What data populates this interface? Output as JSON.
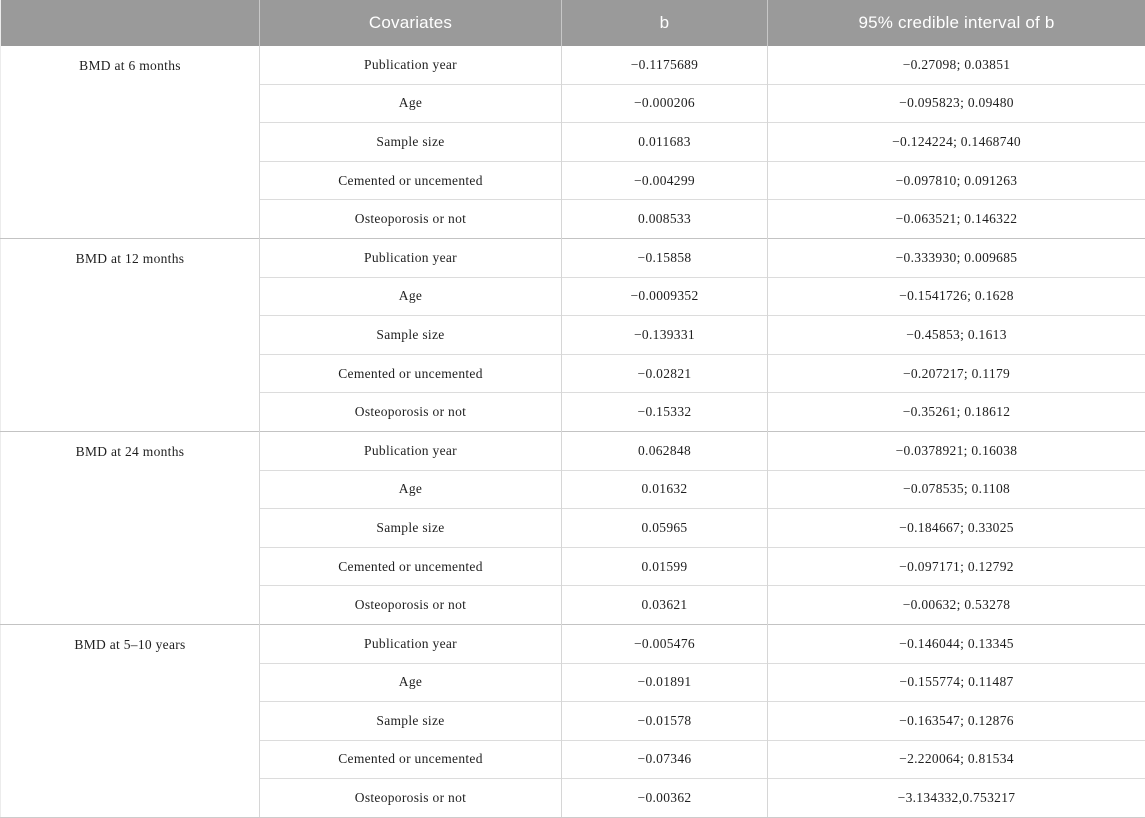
{
  "colors": {
    "header_bg": "#9a9a9a",
    "header_text": "#ffffff",
    "body_text": "#1f1f1f",
    "row_line": "#dcdcdc",
    "group_line": "#c3c3c3"
  },
  "table": {
    "header": {
      "group": "",
      "covariates": "Covariates",
      "b": "b",
      "ci": "95% credible interval of b"
    },
    "groups": [
      {
        "label": "BMD at 6 months",
        "rows": [
          {
            "covariate": "Publication year",
            "b": "−0.1175689",
            "ci": "−0.27098; 0.03851"
          },
          {
            "covariate": "Age",
            "b": "−0.000206",
            "ci": "−0.095823; 0.09480"
          },
          {
            "covariate": "Sample size",
            "b": "0.011683",
            "ci": "−0.124224; 0.1468740"
          },
          {
            "covariate": "Cemented or uncemented",
            "b": "−0.004299",
            "ci": "−0.097810; 0.091263"
          },
          {
            "covariate": "Osteoporosis or not",
            "b": "0.008533",
            "ci": "−0.063521; 0.146322"
          }
        ]
      },
      {
        "label": "BMD at 12 months",
        "rows": [
          {
            "covariate": "Publication year",
            "b": "−0.15858",
            "ci": "−0.333930; 0.009685"
          },
          {
            "covariate": "Age",
            "b": "−0.0009352",
            "ci": "−0.1541726; 0.1628"
          },
          {
            "covariate": "Sample size",
            "b": "−0.139331",
            "ci": "−0.45853; 0.1613"
          },
          {
            "covariate": "Cemented or uncemented",
            "b": "−0.02821",
            "ci": "−0.207217; 0.1179"
          },
          {
            "covariate": "Osteoporosis or not",
            "b": "−0.15332",
            "ci": "−0.35261; 0.18612"
          }
        ]
      },
      {
        "label": "BMD at 24 months",
        "rows": [
          {
            "covariate": "Publication year",
            "b": "0.062848",
            "ci": "−0.0378921; 0.16038"
          },
          {
            "covariate": "Age",
            "b": "0.01632",
            "ci": "−0.078535; 0.1108"
          },
          {
            "covariate": "Sample size",
            "b": "0.05965",
            "ci": "−0.184667; 0.33025"
          },
          {
            "covariate": "Cemented or uncemented",
            "b": "0.01599",
            "ci": "−0.097171; 0.12792"
          },
          {
            "covariate": "Osteoporosis or not",
            "b": "0.03621",
            "ci": "−0.00632; 0.53278"
          }
        ]
      },
      {
        "label": "BMD at 5–10 years",
        "rows": [
          {
            "covariate": "Publication year",
            "b": "−0.005476",
            "ci": "−0.146044; 0.13345"
          },
          {
            "covariate": "Age",
            "b": "−0.01891",
            "ci": "−0.155774; 0.11487"
          },
          {
            "covariate": "Sample size",
            "b": "−0.01578",
            "ci": "−0.163547; 0.12876"
          },
          {
            "covariate": "Cemented or uncemented",
            "b": "−0.07346",
            "ci": "−2.220064; 0.81534"
          },
          {
            "covariate": "Osteoporosis or not",
            "b": "−0.00362",
            "ci": "−3.134332,0.753217"
          }
        ]
      }
    ]
  }
}
